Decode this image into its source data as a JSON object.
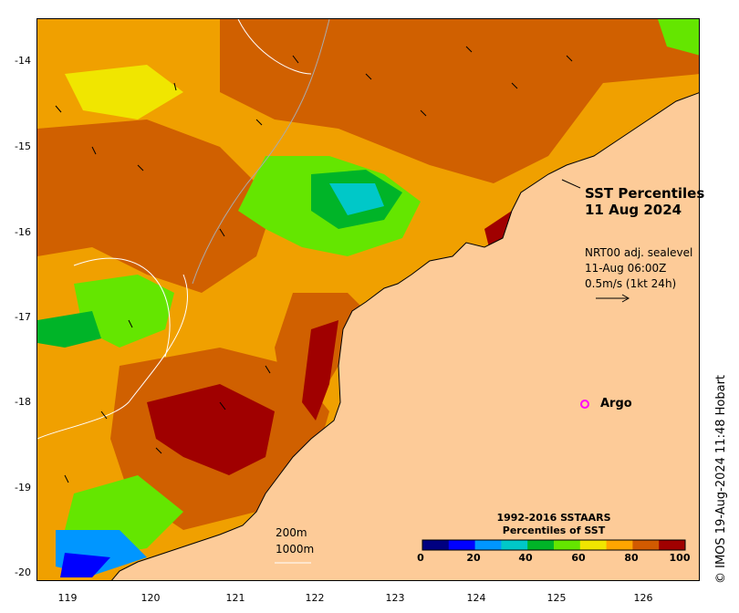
{
  "map": {
    "title_line1": "SST Percentiles",
    "title_line2": "11 Aug 2024",
    "current_product": "NRT00 adj. sealevel",
    "current_time": "11-Aug 06:00Z",
    "current_scale": "0.5m/s (1kt 24h)",
    "legend_argo": "Argo",
    "contour_200": "200m",
    "contour_1000": "1000m",
    "credit": "© IMOS 19-Aug-2024 11:48 Hobart",
    "land_color": "#fdcb98",
    "argo_color": "#ff00ff"
  },
  "axes": {
    "y_ticks": [
      "-14",
      "-15",
      "-16",
      "-17",
      "-18",
      "-19",
      "-20"
    ],
    "x_ticks": [
      "119",
      "120",
      "121",
      "122",
      "123",
      "124",
      "125",
      "126"
    ]
  },
  "colorbar": {
    "title_line1": "1992-2016 SSTAARS",
    "title_line2": "Percentiles of SST",
    "ticks": [
      "0",
      "20",
      "40",
      "60",
      "80",
      "100"
    ],
    "colors": [
      "#000080",
      "#0000ff",
      "#0096ff",
      "#00c8c8",
      "#00b428",
      "#64e600",
      "#f0e600",
      "#ffa500",
      "#d25a00",
      "#a00000"
    ]
  }
}
